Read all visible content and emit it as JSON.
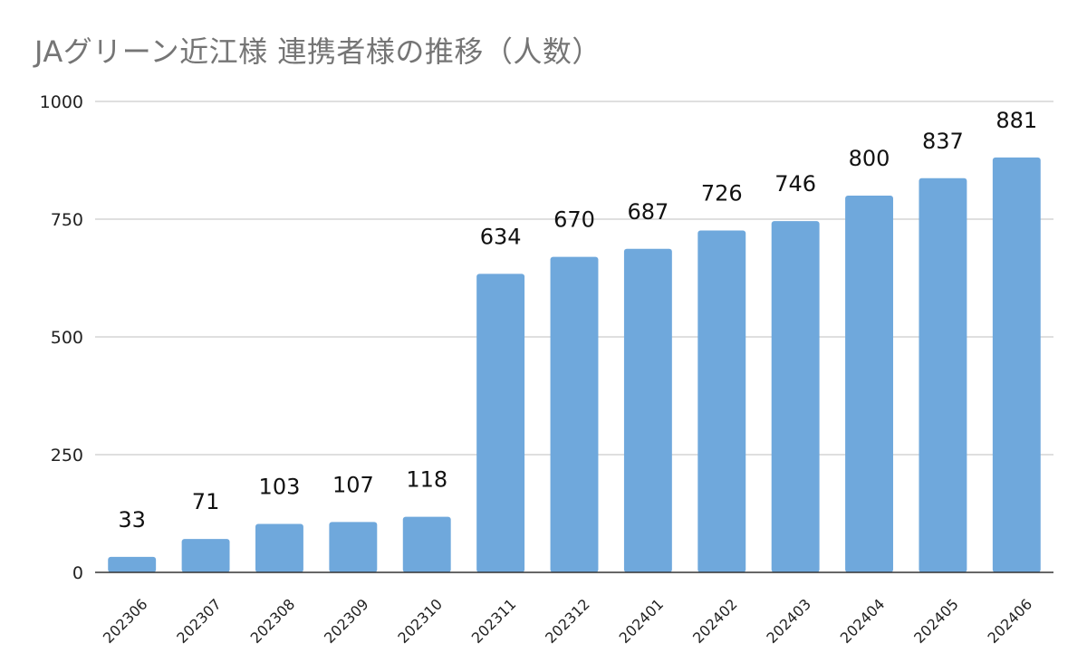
{
  "chart_data": {
    "type": "bar",
    "title": "JAグリーン近江様 連携者様の推移（人数）",
    "xlabel": "",
    "ylabel": "",
    "categories": [
      "202306",
      "202307",
      "202308",
      "202309",
      "202310",
      "202311",
      "202312",
      "202401",
      "202402",
      "202403",
      "202404",
      "202405",
      "202406"
    ],
    "values": [
      33,
      71,
      103,
      107,
      118,
      634,
      670,
      687,
      726,
      746,
      800,
      837,
      881
    ],
    "ylim": [
      0,
      1000
    ],
    "yticks": [
      0,
      250,
      500,
      750,
      1000
    ],
    "grid": true,
    "legend": "none",
    "bar_color": "#6fa8dc",
    "gridline_color": "#cccccc",
    "axis_color": "#333333"
  }
}
